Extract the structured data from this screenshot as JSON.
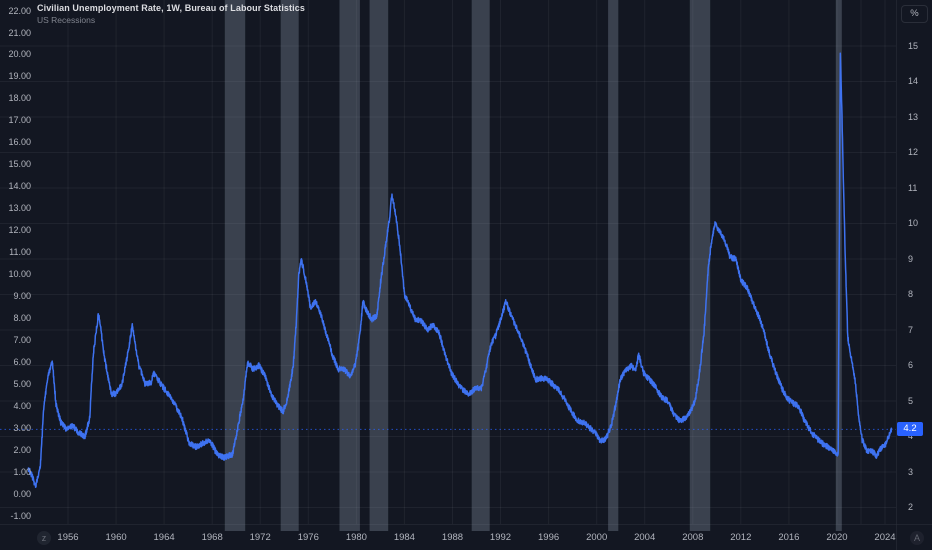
{
  "header": {
    "title": "Civilian Unemployment Rate, 1W, Bureau of Labour Statistics",
    "subtitle": "US Recessions"
  },
  "left_axis": {
    "labels": [
      "22.00",
      "21.00",
      "20.00",
      "19.00",
      "18.00",
      "17.00",
      "16.00",
      "15.00",
      "14.00",
      "13.00",
      "12.00",
      "11.00",
      "10.00",
      "9.00",
      "8.00",
      "7.00",
      "6.00",
      "5.00",
      "4.00",
      "3.00",
      "2.00",
      "1.00",
      "0.00",
      "-1.00"
    ]
  },
  "right_axis": {
    "unit_button": "%",
    "labels": [
      "15",
      "14",
      "13",
      "12",
      "11",
      "10",
      "9",
      "8",
      "7",
      "6",
      "5",
      "4",
      "3",
      "2"
    ],
    "price_label": "4.2",
    "price_value": 4.2
  },
  "time_axis": {
    "labels": [
      "1956",
      "1960",
      "1964",
      "1968",
      "1972",
      "1976",
      "1980",
      "1984",
      "1988",
      "1992",
      "1996",
      "2000",
      "2004",
      "2008",
      "2012",
      "2016",
      "2020",
      "2024"
    ]
  },
  "watermarks": {
    "bottom_left": "z",
    "bottom_right": "A"
  },
  "colors": {
    "background": "#131722",
    "grid": "rgba(250,250,250,0.055)",
    "recession_band": "rgba(141,151,170,0.33)",
    "line": "#3e72f0",
    "accent": "#2962ff",
    "axis_text": "#b2b5be",
    "title_text": "#dcdde1",
    "subtitle_text": "#80848e",
    "border": "#2a2e39",
    "badge_text": "#ffffff"
  },
  "chart_data": {
    "type": "line",
    "title": "Civilian Unemployment Rate, 1W, Bureau of Labour Statistics",
    "series_name": "Civilian Unemployment Rate",
    "overlay_name": "US Recessions",
    "unit": "%",
    "x_range": [
      1952.7,
      2024.6
    ],
    "right_axis_ticks": [
      15,
      14,
      13,
      12,
      11,
      10,
      9,
      8,
      7,
      6,
      5,
      4,
      3,
      2
    ],
    "left_axis_range": [
      -1,
      22
    ],
    "grid": true,
    "last_value": 4.2,
    "points": [
      [
        1952.7,
        3.1
      ],
      [
        1953.0,
        2.9
      ],
      [
        1953.3,
        2.6
      ],
      [
        1953.7,
        3.2
      ],
      [
        1954.0,
        4.9
      ],
      [
        1954.4,
        5.8
      ],
      [
        1954.7,
        6.1
      ],
      [
        1955.0,
        4.9
      ],
      [
        1955.4,
        4.4
      ],
      [
        1955.9,
        4.2
      ],
      [
        1956.4,
        4.3
      ],
      [
        1956.9,
        4.1
      ],
      [
        1957.4,
        4.0
      ],
      [
        1957.8,
        4.5
      ],
      [
        1958.1,
        6.3
      ],
      [
        1958.55,
        7.5
      ],
      [
        1959.0,
        6.3
      ],
      [
        1959.6,
        5.2
      ],
      [
        1960.0,
        5.2
      ],
      [
        1960.5,
        5.5
      ],
      [
        1960.9,
        6.2
      ],
      [
        1961.35,
        7.1
      ],
      [
        1961.9,
        6.0
      ],
      [
        1962.4,
        5.5
      ],
      [
        1962.9,
        5.5
      ],
      [
        1963.1,
        5.8
      ],
      [
        1963.7,
        5.5
      ],
      [
        1964.3,
        5.2
      ],
      [
        1964.9,
        4.9
      ],
      [
        1965.5,
        4.5
      ],
      [
        1966.1,
        3.8
      ],
      [
        1966.7,
        3.7
      ],
      [
        1967.2,
        3.8
      ],
      [
        1967.8,
        3.9
      ],
      [
        1968.4,
        3.5
      ],
      [
        1969.0,
        3.4
      ],
      [
        1969.7,
        3.5
      ],
      [
        1970.1,
        4.2
      ],
      [
        1970.6,
        5.1
      ],
      [
        1970.95,
        6.1
      ],
      [
        1971.4,
        5.9
      ],
      [
        1971.9,
        6.0
      ],
      [
        1972.4,
        5.7
      ],
      [
        1972.9,
        5.2
      ],
      [
        1973.4,
        4.9
      ],
      [
        1973.9,
        4.7
      ],
      [
        1974.3,
        5.1
      ],
      [
        1974.75,
        6.0
      ],
      [
        1975.0,
        7.2
      ],
      [
        1975.2,
        8.5
      ],
      [
        1975.4,
        9.0
      ],
      [
        1975.8,
        8.4
      ],
      [
        1976.2,
        7.6
      ],
      [
        1976.6,
        7.8
      ],
      [
        1977.0,
        7.5
      ],
      [
        1977.5,
        6.9
      ],
      [
        1978.0,
        6.3
      ],
      [
        1978.5,
        5.9
      ],
      [
        1979.0,
        5.9
      ],
      [
        1979.45,
        5.7
      ],
      [
        1979.9,
        6.0
      ],
      [
        1980.3,
        6.9
      ],
      [
        1980.55,
        7.8
      ],
      [
        1980.9,
        7.5
      ],
      [
        1981.3,
        7.3
      ],
      [
        1981.7,
        7.4
      ],
      [
        1982.0,
        8.3
      ],
      [
        1982.4,
        9.3
      ],
      [
        1982.75,
        10.1
      ],
      [
        1982.95,
        10.8
      ],
      [
        1983.2,
        10.4
      ],
      [
        1983.6,
        9.4
      ],
      [
        1984.0,
        8.0
      ],
      [
        1984.4,
        7.7
      ],
      [
        1984.9,
        7.3
      ],
      [
        1985.4,
        7.25
      ],
      [
        1985.9,
        7.0
      ],
      [
        1986.4,
        7.15
      ],
      [
        1986.9,
        6.9
      ],
      [
        1987.4,
        6.3
      ],
      [
        1987.9,
        5.8
      ],
      [
        1988.4,
        5.5
      ],
      [
        1988.9,
        5.3
      ],
      [
        1989.4,
        5.2
      ],
      [
        1989.9,
        5.35
      ],
      [
        1990.4,
        5.35
      ],
      [
        1990.8,
        5.9
      ],
      [
        1991.2,
        6.6
      ],
      [
        1991.6,
        6.85
      ],
      [
        1992.0,
        7.3
      ],
      [
        1992.45,
        7.8
      ],
      [
        1992.9,
        7.4
      ],
      [
        1993.4,
        7.0
      ],
      [
        1993.9,
        6.6
      ],
      [
        1994.4,
        6.1
      ],
      [
        1994.9,
        5.6
      ],
      [
        1995.4,
        5.65
      ],
      [
        1995.9,
        5.6
      ],
      [
        1996.4,
        5.45
      ],
      [
        1996.9,
        5.3
      ],
      [
        1997.4,
        5.0
      ],
      [
        1997.9,
        4.7
      ],
      [
        1998.4,
        4.45
      ],
      [
        1998.9,
        4.4
      ],
      [
        1999.4,
        4.25
      ],
      [
        1999.9,
        4.1
      ],
      [
        2000.3,
        3.85
      ],
      [
        2000.8,
        3.95
      ],
      [
        2001.2,
        4.3
      ],
      [
        2001.6,
        4.9
      ],
      [
        2001.95,
        5.6
      ],
      [
        2002.4,
        5.85
      ],
      [
        2002.9,
        6.0
      ],
      [
        2003.2,
        5.85
      ],
      [
        2003.5,
        6.3
      ],
      [
        2003.9,
        5.8
      ],
      [
        2004.4,
        5.6
      ],
      [
        2004.9,
        5.4
      ],
      [
        2005.4,
        5.1
      ],
      [
        2005.9,
        5.0
      ],
      [
        2006.4,
        4.65
      ],
      [
        2006.9,
        4.45
      ],
      [
        2007.3,
        4.5
      ],
      [
        2007.8,
        4.7
      ],
      [
        2008.2,
        5.0
      ],
      [
        2008.6,
        5.9
      ],
      [
        2008.95,
        7.0
      ],
      [
        2009.3,
        8.8
      ],
      [
        2009.6,
        9.6
      ],
      [
        2009.85,
        10.0
      ],
      [
        2010.2,
        9.8
      ],
      [
        2010.7,
        9.5
      ],
      [
        2011.1,
        9.05
      ],
      [
        2011.6,
        9.0
      ],
      [
        2012.0,
        8.4
      ],
      [
        2012.5,
        8.2
      ],
      [
        2012.9,
        7.85
      ],
      [
        2013.3,
        7.55
      ],
      [
        2013.8,
        7.1
      ],
      [
        2014.3,
        6.45
      ],
      [
        2014.8,
        5.9
      ],
      [
        2015.3,
        5.45
      ],
      [
        2015.8,
        5.1
      ],
      [
        2016.3,
        4.95
      ],
      [
        2016.8,
        4.85
      ],
      [
        2017.3,
        4.45
      ],
      [
        2017.8,
        4.15
      ],
      [
        2018.3,
        3.95
      ],
      [
        2018.8,
        3.8
      ],
      [
        2019.3,
        3.7
      ],
      [
        2019.8,
        3.55
      ],
      [
        2020.1,
        3.5
      ],
      [
        2020.28,
        14.8
      ],
      [
        2020.42,
        13.0
      ],
      [
        2020.55,
        11.0
      ],
      [
        2020.7,
        8.9
      ],
      [
        2020.9,
        6.8
      ],
      [
        2021.2,
        6.2
      ],
      [
        2021.5,
        5.6
      ],
      [
        2021.8,
        4.6
      ],
      [
        2022.1,
        3.9
      ],
      [
        2022.5,
        3.6
      ],
      [
        2022.9,
        3.6
      ],
      [
        2023.3,
        3.45
      ],
      [
        2023.7,
        3.7
      ],
      [
        2024.0,
        3.75
      ],
      [
        2024.25,
        3.95
      ],
      [
        2024.55,
        4.2
      ]
    ],
    "recessions": [
      [
        1969.05,
        1970.75
      ],
      [
        1973.7,
        1975.2
      ],
      [
        1978.6,
        1980.3
      ],
      [
        1981.1,
        1982.65
      ],
      [
        1989.6,
        1991.1
      ],
      [
        2000.95,
        2001.8
      ],
      [
        2007.75,
        2009.45
      ],
      [
        2019.9,
        2020.4
      ]
    ]
  }
}
